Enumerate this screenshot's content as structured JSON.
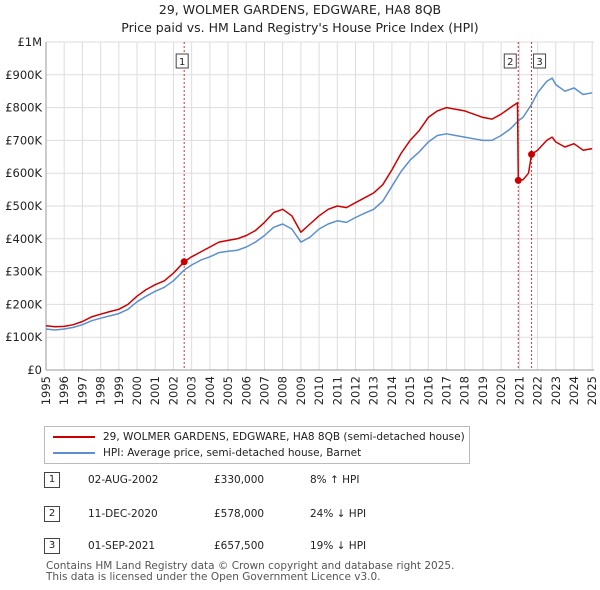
{
  "chart_data": {
    "type": "line",
    "title": "29, WOLMER GARDENS, EDGWARE, HA8 8QB",
    "subtitle": "Price paid vs. HM Land Registry's House Price Index (HPI)",
    "xlabel": "",
    "ylabel": "",
    "xlim": [
      1995,
      2025.1
    ],
    "ylim": [
      0,
      1000000
    ],
    "x_ticks": [
      "1995",
      "1996",
      "1997",
      "1998",
      "1999",
      "2000",
      "2001",
      "2002",
      "2003",
      "2004",
      "2005",
      "2006",
      "2007",
      "2008",
      "2009",
      "2010",
      "2011",
      "2012",
      "2013",
      "2014",
      "2015",
      "2016",
      "2017",
      "2018",
      "2019",
      "2020",
      "2021",
      "2022",
      "2023",
      "2024",
      "2025"
    ],
    "y_ticks": [
      {
        "value": 0,
        "label": "£0"
      },
      {
        "value": 100000,
        "label": "£100K"
      },
      {
        "value": 200000,
        "label": "£200K"
      },
      {
        "value": 300000,
        "label": "£300K"
      },
      {
        "value": 400000,
        "label": "£400K"
      },
      {
        "value": 500000,
        "label": "£500K"
      },
      {
        "value": 600000,
        "label": "£600K"
      },
      {
        "value": 700000,
        "label": "£700K"
      },
      {
        "value": 800000,
        "label": "£800K"
      },
      {
        "value": 900000,
        "label": "£900K"
      },
      {
        "value": 1000000,
        "label": "£1M"
      }
    ],
    "grid": true,
    "series": [
      {
        "name": "29, WOLMER GARDENS, EDGWARE, HA8 8QB (semi-detached house)",
        "color": "#cc0000",
        "points": [
          [
            1995.0,
            135000
          ],
          [
            1995.5,
            132000
          ],
          [
            1996.0,
            133000
          ],
          [
            1996.5,
            138000
          ],
          [
            1997.0,
            148000
          ],
          [
            1997.5,
            162000
          ],
          [
            1998.0,
            170000
          ],
          [
            1998.5,
            178000
          ],
          [
            1999.0,
            185000
          ],
          [
            1999.5,
            200000
          ],
          [
            2000.0,
            225000
          ],
          [
            2000.5,
            245000
          ],
          [
            2001.0,
            260000
          ],
          [
            2001.5,
            272000
          ],
          [
            2002.0,
            295000
          ],
          [
            2002.59,
            330000
          ],
          [
            2003.0,
            345000
          ],
          [
            2003.5,
            360000
          ],
          [
            2004.0,
            375000
          ],
          [
            2004.5,
            390000
          ],
          [
            2005.0,
            395000
          ],
          [
            2005.5,
            400000
          ],
          [
            2006.0,
            410000
          ],
          [
            2006.5,
            425000
          ],
          [
            2007.0,
            450000
          ],
          [
            2007.5,
            480000
          ],
          [
            2008.0,
            490000
          ],
          [
            2008.5,
            470000
          ],
          [
            2009.0,
            420000
          ],
          [
            2009.5,
            445000
          ],
          [
            2010.0,
            470000
          ],
          [
            2010.5,
            490000
          ],
          [
            2011.0,
            500000
          ],
          [
            2011.5,
            495000
          ],
          [
            2012.0,
            510000
          ],
          [
            2012.5,
            525000
          ],
          [
            2013.0,
            540000
          ],
          [
            2013.5,
            565000
          ],
          [
            2014.0,
            610000
          ],
          [
            2014.5,
            660000
          ],
          [
            2015.0,
            700000
          ],
          [
            2015.5,
            730000
          ],
          [
            2016.0,
            770000
          ],
          [
            2016.5,
            790000
          ],
          [
            2017.0,
            800000
          ],
          [
            2017.5,
            795000
          ],
          [
            2018.0,
            790000
          ],
          [
            2018.5,
            780000
          ],
          [
            2019.0,
            770000
          ],
          [
            2019.5,
            765000
          ],
          [
            2020.0,
            780000
          ],
          [
            2020.5,
            800000
          ],
          [
            2020.9,
            815000
          ],
          [
            2020.94,
            578000
          ],
          [
            2021.2,
            580000
          ],
          [
            2021.5,
            600000
          ],
          [
            2021.67,
            657500
          ],
          [
            2022.0,
            670000
          ],
          [
            2022.5,
            700000
          ],
          [
            2022.8,
            710000
          ],
          [
            2023.0,
            695000
          ],
          [
            2023.5,
            680000
          ],
          [
            2024.0,
            690000
          ],
          [
            2024.5,
            670000
          ],
          [
            2025.0,
            675000
          ]
        ]
      },
      {
        "name": "HPI: Average price, semi-detached house, Barnet",
        "color": "#5b8fcf",
        "points": [
          [
            1995.0,
            125000
          ],
          [
            1995.5,
            122000
          ],
          [
            1996.0,
            125000
          ],
          [
            1996.5,
            130000
          ],
          [
            1997.0,
            138000
          ],
          [
            1997.5,
            150000
          ],
          [
            1998.0,
            158000
          ],
          [
            1998.5,
            165000
          ],
          [
            1999.0,
            172000
          ],
          [
            1999.5,
            185000
          ],
          [
            2000.0,
            208000
          ],
          [
            2000.5,
            225000
          ],
          [
            2001.0,
            240000
          ],
          [
            2001.5,
            252000
          ],
          [
            2002.0,
            272000
          ],
          [
            2002.59,
            305000
          ],
          [
            2003.0,
            320000
          ],
          [
            2003.5,
            335000
          ],
          [
            2004.0,
            345000
          ],
          [
            2004.5,
            358000
          ],
          [
            2005.0,
            362000
          ],
          [
            2005.5,
            365000
          ],
          [
            2006.0,
            375000
          ],
          [
            2006.5,
            390000
          ],
          [
            2007.0,
            410000
          ],
          [
            2007.5,
            435000
          ],
          [
            2008.0,
            445000
          ],
          [
            2008.5,
            430000
          ],
          [
            2009.0,
            390000
          ],
          [
            2009.5,
            405000
          ],
          [
            2010.0,
            430000
          ],
          [
            2010.5,
            445000
          ],
          [
            2011.0,
            455000
          ],
          [
            2011.5,
            450000
          ],
          [
            2012.0,
            465000
          ],
          [
            2012.5,
            478000
          ],
          [
            2013.0,
            490000
          ],
          [
            2013.5,
            515000
          ],
          [
            2014.0,
            560000
          ],
          [
            2014.5,
            605000
          ],
          [
            2015.0,
            640000
          ],
          [
            2015.5,
            665000
          ],
          [
            2016.0,
            695000
          ],
          [
            2016.5,
            715000
          ],
          [
            2017.0,
            720000
          ],
          [
            2017.5,
            715000
          ],
          [
            2018.0,
            710000
          ],
          [
            2018.5,
            705000
          ],
          [
            2019.0,
            700000
          ],
          [
            2019.5,
            700000
          ],
          [
            2020.0,
            715000
          ],
          [
            2020.5,
            735000
          ],
          [
            2020.94,
            760000
          ],
          [
            2021.2,
            770000
          ],
          [
            2021.67,
            810000
          ],
          [
            2022.0,
            845000
          ],
          [
            2022.5,
            880000
          ],
          [
            2022.8,
            890000
          ],
          [
            2023.0,
            870000
          ],
          [
            2023.5,
            850000
          ],
          [
            2024.0,
            860000
          ],
          [
            2024.5,
            840000
          ],
          [
            2025.0,
            845000
          ]
        ]
      }
    ],
    "sales": [
      {
        "num": "1",
        "x": 2002.59,
        "value": 330000,
        "date": "02-AUG-2002",
        "price": "£330,000",
        "hpi": "8% ↑ HPI"
      },
      {
        "num": "2",
        "x": 2020.94,
        "value": 578000,
        "date": "11-DEC-2020",
        "price": "£578,000",
        "hpi": "24% ↓ HPI"
      },
      {
        "num": "3",
        "x": 2021.67,
        "value": 657500,
        "date": "01-SEP-2021",
        "price": "£657,500",
        "hpi": "19% ↓ HPI"
      }
    ]
  },
  "legend": {
    "red_label": "29, WOLMER GARDENS, EDGWARE, HA8 8QB (semi-detached house)",
    "blue_label": "HPI: Average price, semi-detached house, Barnet"
  },
  "footer": {
    "line1": "Contains HM Land Registry data © Crown copyright and database right 2025.",
    "line2": "This data is licensed under the Open Government Licence v3.0."
  }
}
